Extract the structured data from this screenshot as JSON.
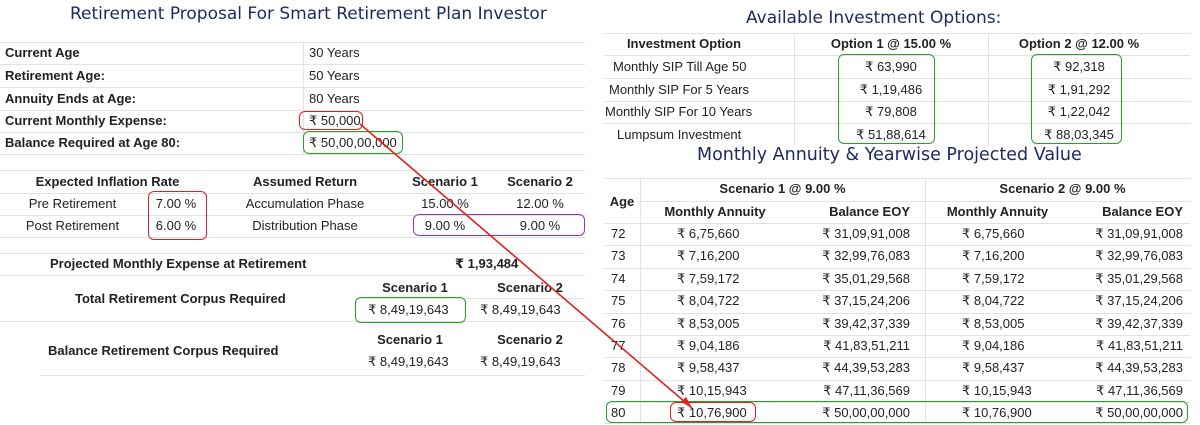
{
  "left_title": "Retirement Proposal For Smart Retirement Plan Investor",
  "right_title": "Available Investment Options:",
  "annuity_title": "Monthly Annuity & Yearwise Projected Value",
  "profile": [
    {
      "label": "Current Age",
      "value": "30 Years"
    },
    {
      "label": "Retirement Age:",
      "value": "50 Years"
    },
    {
      "label": "Annuity Ends at Age:",
      "value": "80 Years"
    },
    {
      "label": "Current Monthly Expense:",
      "value": "₹ 50,000"
    },
    {
      "label": "Balance Required at Age 80:",
      "value": "₹ 50,00,00,000"
    }
  ],
  "assumptions": {
    "headers": [
      "Expected Inflation Rate",
      "Assumed Return",
      "Scenario 1",
      "Scenario 2"
    ],
    "rows": [
      {
        "label": "Pre Retirement",
        "inflation": "7.00 %",
        "phase": "Accumulation Phase",
        "s1": "15.00 %",
        "s2": "12.00 %"
      },
      {
        "label": "Post Retirement",
        "inflation": "6.00 %",
        "phase": "Distribution Phase",
        "s1": "9.00 %",
        "s2": "9.00 %"
      }
    ]
  },
  "corpus": {
    "projected_label": "Projected Monthly Expense at Retirement",
    "projected_value": "₹ 1,93,484",
    "s1_label": "Scenario 1",
    "s2_label": "Scenario 2",
    "total_label": "Total Retirement Corpus Required",
    "total_s1": "₹ 8,49,19,643",
    "total_s2": "₹ 8,49,19,643",
    "balance_label": "Balance Retirement Corpus Required",
    "balance_s1": "₹ 8,49,19,643",
    "balance_s2": "₹ 8,49,19,643"
  },
  "investment": {
    "headers": [
      "Investment Option",
      "Option 1 @ 15.00 %",
      "Option 2 @ 12.00 %"
    ],
    "rows": [
      {
        "label": "Monthly SIP Till Age 50",
        "o1": "₹ 63,990",
        "o2": "₹ 92,318"
      },
      {
        "label": "Monthly SIP For 5 Years",
        "o1": "₹ 1,19,486",
        "o2": "₹ 1,91,292"
      },
      {
        "label": "Monthly SIP For 10 Years",
        "o1": "₹ 79,808",
        "o2": "₹ 1,22,042"
      },
      {
        "label": "Lumpsum Investment",
        "o1": "₹ 51,88,614",
        "o2": "₹ 88,03,345"
      }
    ]
  },
  "annuity": {
    "age_label": "Age",
    "s1_header": "Scenario 1 @ 9.00 %",
    "s2_header": "Scenario 2 @ 9.00 %",
    "monthly_label": "Monthly Annuity",
    "balance_label": "Balance EOY",
    "rows": [
      {
        "age": "72",
        "s1m": "₹ 6,75,660",
        "s1b": "₹ 31,09,91,008",
        "s2m": "₹ 6,75,660",
        "s2b": "₹ 31,09,91,008"
      },
      {
        "age": "73",
        "s1m": "₹ 7,16,200",
        "s1b": "₹ 32,99,76,083",
        "s2m": "₹ 7,16,200",
        "s2b": "₹ 32,99,76,083"
      },
      {
        "age": "74",
        "s1m": "₹ 7,59,172",
        "s1b": "₹ 35,01,29,568",
        "s2m": "₹ 7,59,172",
        "s2b": "₹ 35,01,29,568"
      },
      {
        "age": "75",
        "s1m": "₹ 8,04,722",
        "s1b": "₹ 37,15,24,206",
        "s2m": "₹ 8,04,722",
        "s2b": "₹ 37,15,24,206"
      },
      {
        "age": "76",
        "s1m": "₹ 8,53,005",
        "s1b": "₹ 39,42,37,339",
        "s2m": "₹ 8,53,005",
        "s2b": "₹ 39,42,37,339"
      },
      {
        "age": "77",
        "s1m": "₹ 9,04,186",
        "s1b": "₹ 41,83,51,211",
        "s2m": "₹ 9,04,186",
        "s2b": "₹ 41,83,51,211"
      },
      {
        "age": "78",
        "s1m": "₹ 9,58,437",
        "s1b": "₹ 44,39,53,283",
        "s2m": "₹ 9,58,437",
        "s2b": "₹ 44,39,53,283"
      },
      {
        "age": "79",
        "s1m": "₹ 10,15,943",
        "s1b": "₹ 47,11,36,569",
        "s2m": "₹ 10,15,943",
        "s2b": "₹ 47,11,36,569"
      },
      {
        "age": "80",
        "s1m": "₹ 10,76,900",
        "s1b": "₹ 50,00,00,000",
        "s2m": "₹ 10,76,900",
        "s2b": "₹ 50,00,00,000"
      }
    ]
  },
  "colors": {
    "highlight_red": "#e02020",
    "highlight_green": "#2aa02a",
    "highlight_purple": "#9b30c0",
    "title": "#1f2a63"
  }
}
